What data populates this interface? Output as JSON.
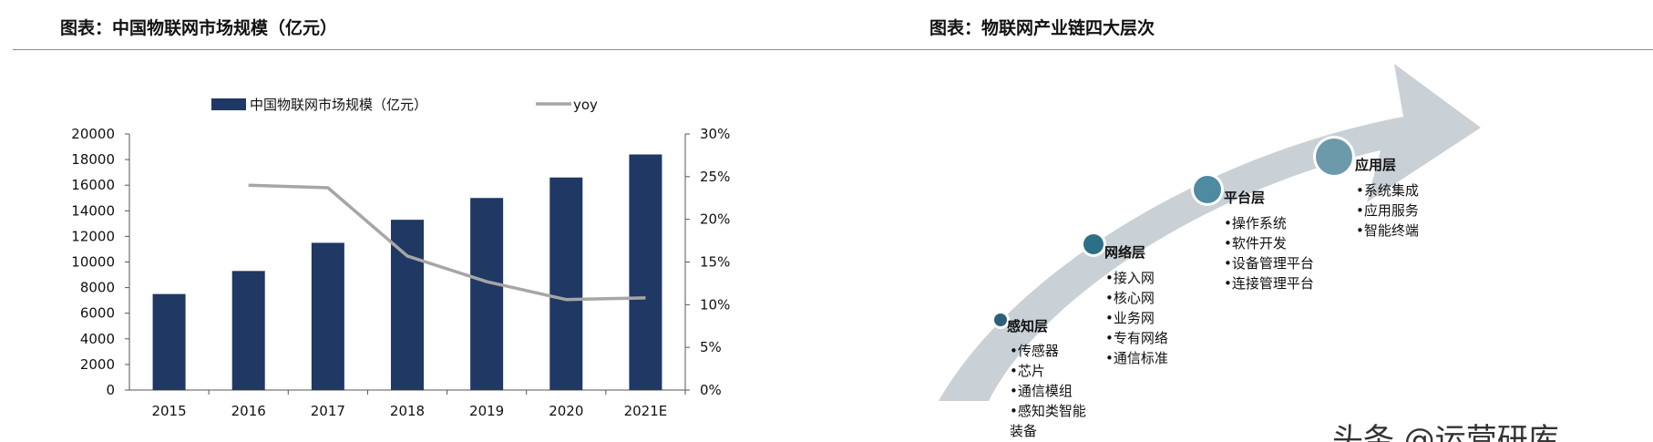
{
  "header": {
    "left_title": "图表：中国物联网市场规模（亿元）",
    "right_title": "图表：物联网产业链四大层次"
  },
  "chart_data": [
    {
      "type": "bar",
      "categories": [
        "2015",
        "2016",
        "2017",
        "2018",
        "2019",
        "2020",
        "2021E"
      ],
      "series": [
        {
          "name": "中国物联网市场规模（亿元）",
          "type": "bar",
          "axis": "left",
          "color": "#1f3864",
          "values": [
            7500,
            9300,
            11500,
            13300,
            15000,
            16600,
            18400
          ]
        },
        {
          "name": "yoy",
          "type": "line",
          "axis": "right",
          "color": "#a6a6a6",
          "values": [
            null,
            0.24,
            0.237,
            0.157,
            0.127,
            0.106,
            0.108
          ]
        }
      ],
      "left_axis": {
        "ylim": [
          0,
          20000
        ],
        "ticks": [
          "0",
          "2000",
          "4000",
          "6000",
          "8000",
          "10000",
          "12000",
          "14000",
          "16000",
          "18000",
          "20000"
        ]
      },
      "right_axis": {
        "ylim": [
          0,
          0.3
        ],
        "ticks": [
          "0%",
          "5%",
          "10%",
          "15%",
          "20%",
          "25%",
          "30%"
        ]
      },
      "legend_position": "top",
      "grid": false
    },
    {
      "type": "diagram",
      "arrow_color": "#c9d0d6",
      "layers": [
        {
          "title": "感知层",
          "items": [
            "•传感器",
            "•芯片",
            "•通信模组",
            "•感知类智能",
            "装备"
          ]
        },
        {
          "title": "网络层",
          "items": [
            "•接入网",
            "•核心网",
            "•业务网",
            "•专有网络",
            "•通信标准"
          ]
        },
        {
          "title": "平台层",
          "items": [
            "•操作系统",
            "•软件开发",
            "•设备管理平台",
            "•连接管理平台"
          ]
        },
        {
          "title": "应用层",
          "items": [
            "•系统集成",
            "•应用服务",
            "•智能终端"
          ]
        }
      ]
    }
  ],
  "watermark": "头条 @运营研库"
}
